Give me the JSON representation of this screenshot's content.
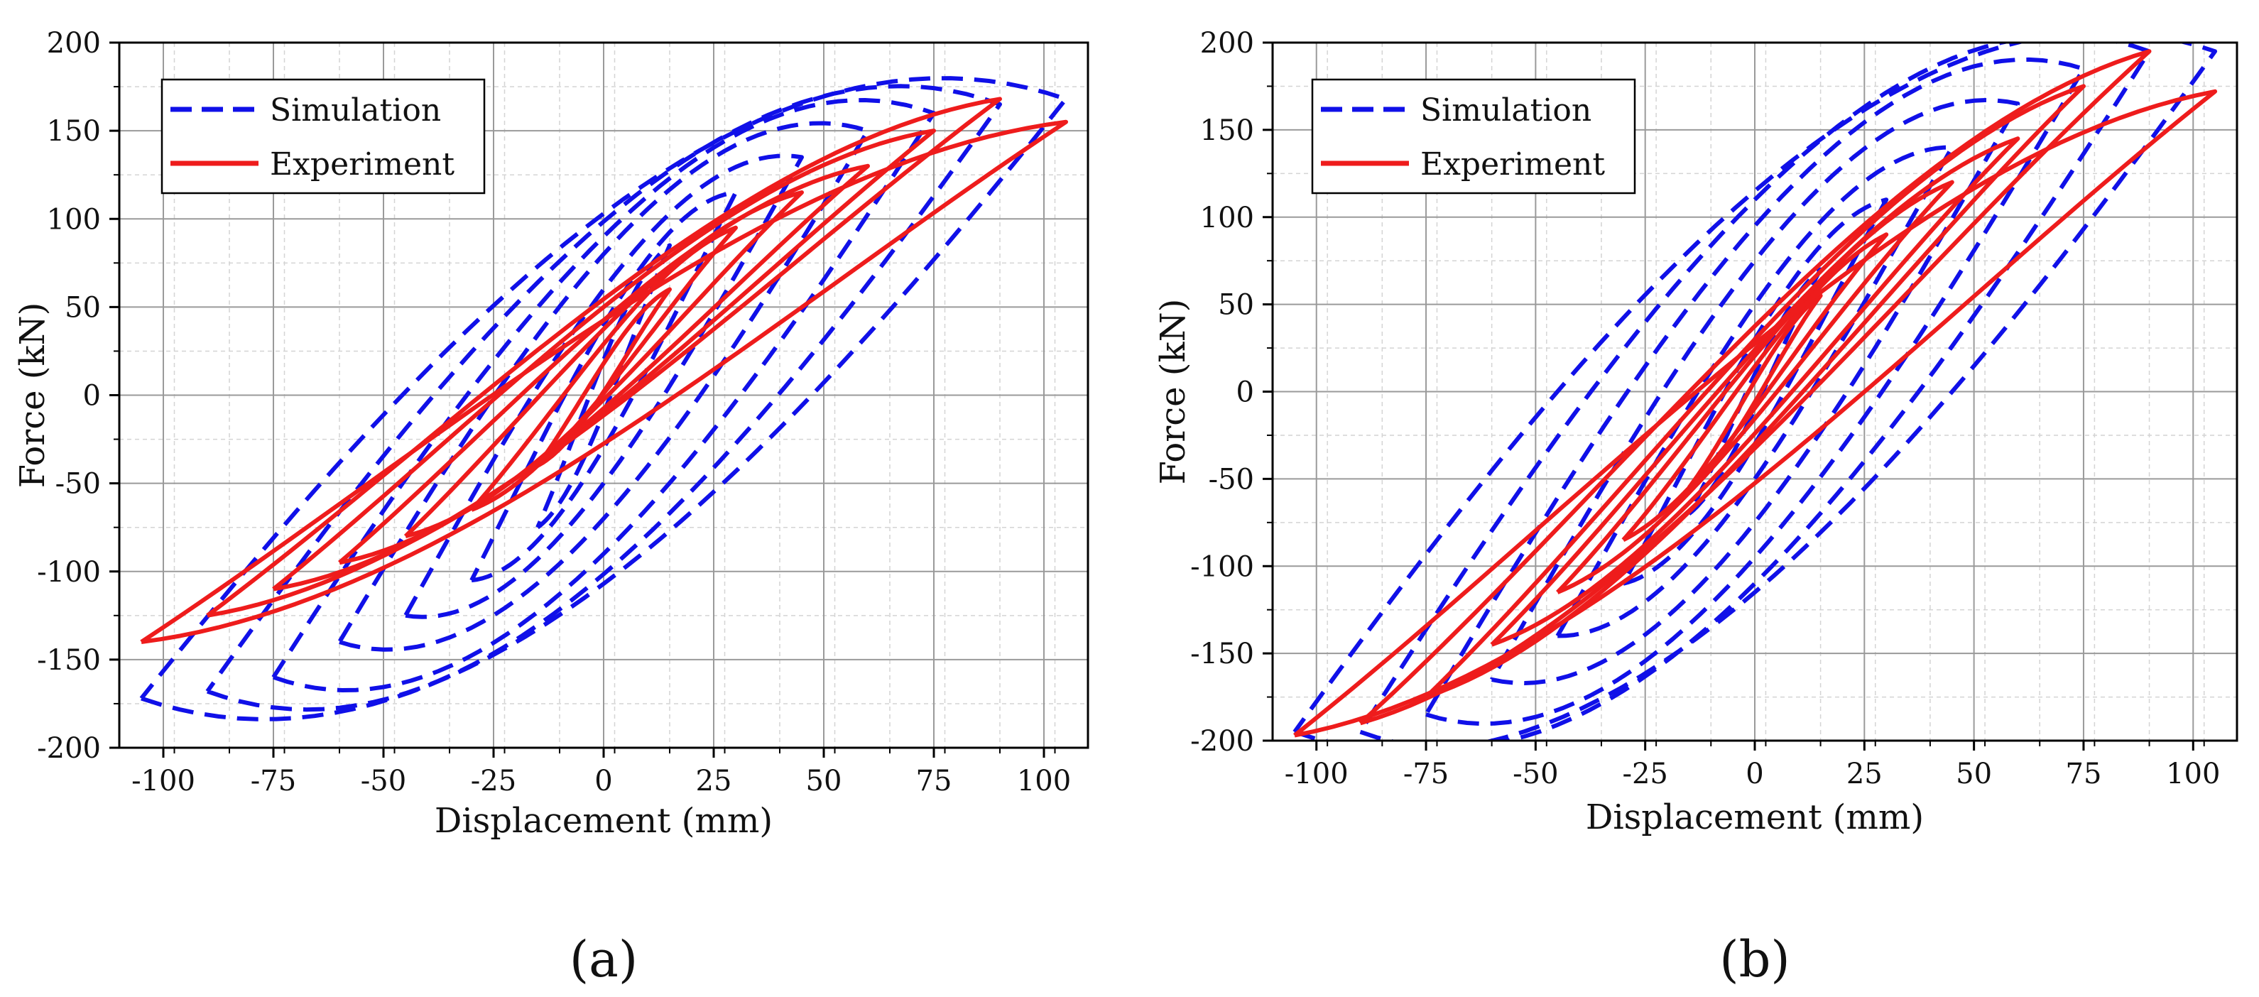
{
  "colors": {
    "simulation": "#1010e8",
    "experiment": "#ee1c1c",
    "grid_major": "#9a9a9a",
    "grid_minor": "#d4d4d4",
    "axis": "#000000"
  },
  "chart_data": [
    {
      "id": "a",
      "type": "line",
      "panel_label": "(a)",
      "xlabel": "Displacement (mm)",
      "ylabel": "Force (kN)",
      "xlim": [
        -110,
        110
      ],
      "ylim": [
        -200,
        200
      ],
      "xticks": [
        -100,
        -75,
        -50,
        -25,
        0,
        25,
        50,
        75,
        100
      ],
      "yticks": [
        -200,
        -150,
        -100,
        -50,
        0,
        50,
        100,
        150,
        200
      ],
      "grid": true,
      "legend": "top-left",
      "series": [
        {
          "name": "Simulation",
          "style": "dashed",
          "color": "#1010e8",
          "loops": [
            {
              "amp": 15,
              "fpos": 85,
              "fneg": -75,
              "w": 15
            },
            {
              "amp": 30,
              "fpos": 115,
              "fneg": -105,
              "w": 35
            },
            {
              "amp": 45,
              "fpos": 135,
              "fneg": -125,
              "w": 55
            },
            {
              "amp": 60,
              "fpos": 150,
              "fneg": -140,
              "w": 75
            },
            {
              "amp": 75,
              "fpos": 160,
              "fneg": -160,
              "w": 90
            },
            {
              "amp": 90,
              "fpos": 165,
              "fneg": -168,
              "w": 100
            },
            {
              "amp": 105,
              "fpos": 168,
              "fneg": -172,
              "w": 105
            }
          ]
        },
        {
          "name": "Experiment",
          "style": "solid",
          "color": "#ee1c1c",
          "loops": [
            {
              "amp": 15,
              "fpos": 60,
              "fneg": -40,
              "w": 8
            },
            {
              "amp": 30,
              "fpos": 95,
              "fneg": -65,
              "w": 14
            },
            {
              "amp": 45,
              "fpos": 115,
              "fneg": -80,
              "w": 20
            },
            {
              "amp": 60,
              "fpos": 130,
              "fneg": -95,
              "w": 25
            },
            {
              "amp": 75,
              "fpos": 150,
              "fneg": -110,
              "w": 30
            },
            {
              "amp": 90,
              "fpos": 168,
              "fneg": -125,
              "w": 33
            },
            {
              "amp": 105,
              "fpos": 155,
              "fneg": -140,
              "w": 35
            }
          ]
        }
      ]
    },
    {
      "id": "b",
      "type": "line",
      "panel_label": "(b)",
      "xlabel": "Displacement (mm)",
      "ylabel": "Force (kN)",
      "xlim": [
        -110,
        110
      ],
      "ylim": [
        -200,
        200
      ],
      "xticks": [
        -100,
        -75,
        -50,
        -25,
        0,
        25,
        50,
        75,
        100
      ],
      "yticks": [
        -200,
        -150,
        -100,
        -50,
        0,
        50,
        100,
        150,
        200
      ],
      "grid": true,
      "legend": "top-left",
      "series": [
        {
          "name": "Simulation",
          "style": "dashed",
          "color": "#1010e8",
          "loops": [
            {
              "amp": 15,
              "fpos": 70,
              "fneg": -70,
              "w": 10
            },
            {
              "amp": 30,
              "fpos": 110,
              "fneg": -110,
              "w": 30
            },
            {
              "amp": 45,
              "fpos": 140,
              "fneg": -140,
              "w": 50
            },
            {
              "amp": 60,
              "fpos": 165,
              "fneg": -165,
              "w": 75
            },
            {
              "amp": 75,
              "fpos": 185,
              "fneg": -185,
              "w": 95
            },
            {
              "amp": 90,
              "fpos": 195,
              "fneg": -195,
              "w": 110
            },
            {
              "amp": 105,
              "fpos": 195,
              "fneg": -195,
              "w": 115
            }
          ]
        },
        {
          "name": "Experiment",
          "style": "solid",
          "color": "#ee1c1c",
          "loops": [
            {
              "amp": 15,
              "fpos": 55,
              "fneg": -55,
              "w": 6
            },
            {
              "amp": 30,
              "fpos": 90,
              "fneg": -85,
              "w": 12
            },
            {
              "amp": 45,
              "fpos": 120,
              "fneg": -115,
              "w": 18
            },
            {
              "amp": 60,
              "fpos": 145,
              "fneg": -145,
              "w": 24
            },
            {
              "amp": 75,
              "fpos": 175,
              "fneg": -175,
              "w": 30
            },
            {
              "amp": 90,
              "fpos": 195,
              "fneg": -190,
              "w": 35
            },
            {
              "amp": 105,
              "fpos": 172,
              "fneg": -197,
              "w": 40
            }
          ]
        }
      ]
    }
  ]
}
